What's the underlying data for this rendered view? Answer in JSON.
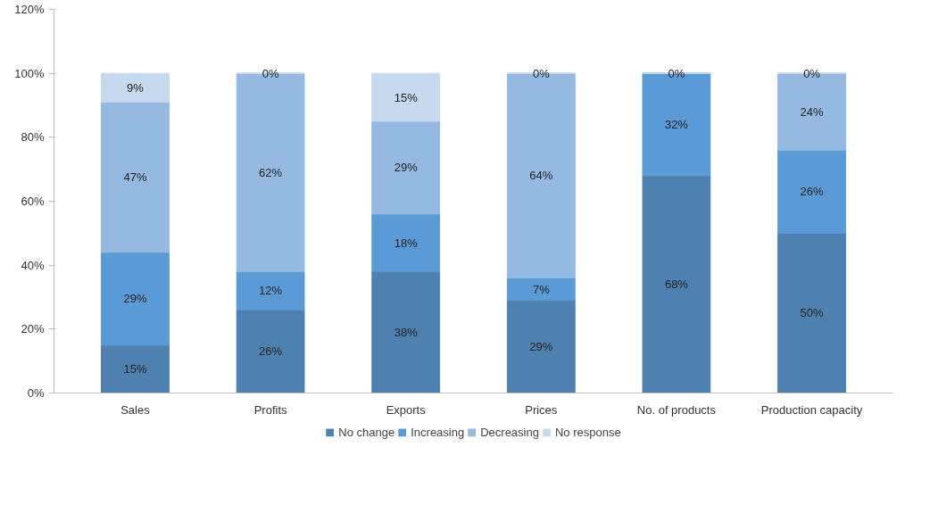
{
  "chart_data": {
    "type": "bar",
    "stacked": true,
    "categories": [
      "Sales",
      "Profits",
      "Exports",
      "Prices",
      "No. of products",
      "Production capacity"
    ],
    "series": [
      {
        "name": "No change",
        "color": "#4f81b0",
        "values": [
          15,
          26,
          38,
          29,
          68,
          50
        ],
        "value_labels": [
          "15%",
          "26%",
          "38%",
          "29%",
          "68%",
          "50%"
        ]
      },
      {
        "name": "Increasing",
        "color": "#5b9bd5",
        "values": [
          29,
          12,
          18,
          7,
          32,
          26
        ],
        "value_labels": [
          "29%",
          "12%",
          "18%",
          "7%",
          "32%",
          "26%"
        ]
      },
      {
        "name": "Decreasing",
        "color": "#95b9e1",
        "values": [
          47,
          62,
          29,
          64,
          0,
          24
        ],
        "value_labels": [
          "47%",
          "62%",
          "29%",
          "64%",
          "0%",
          "24%"
        ]
      },
      {
        "name": "No response",
        "color": "#c6d9ef",
        "values": [
          9,
          0,
          15,
          0,
          0,
          0
        ],
        "value_labels": [
          "9%",
          "0%",
          "15%",
          "0%",
          null,
          "0%"
        ]
      }
    ],
    "ylim": [
      0,
      120
    ],
    "yticks": [
      {
        "value": 0,
        "label": "0%"
      },
      {
        "value": 20,
        "label": "20%"
      },
      {
        "value": 40,
        "label": "40%"
      },
      {
        "value": 60,
        "label": "60%"
      },
      {
        "value": 80,
        "label": "80%"
      },
      {
        "value": 100,
        "label": "100%"
      },
      {
        "value": 120,
        "label": "120%"
      }
    ],
    "grid": false,
    "legend": "bottom"
  }
}
